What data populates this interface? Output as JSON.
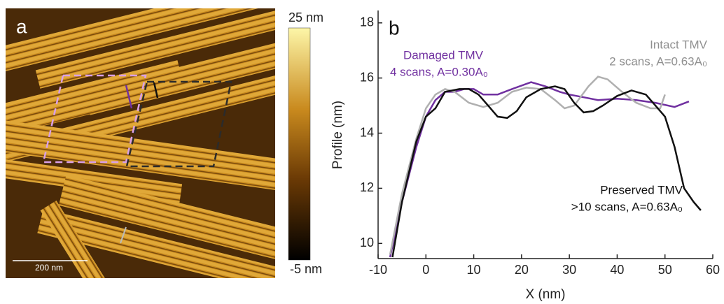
{
  "image_panel": {
    "label": "a",
    "scale_bar": "200 nm",
    "colorbar_max": "25 nm",
    "colorbar_min": "-5 nm"
  },
  "chart_data": {
    "type": "line",
    "panel_label": "b",
    "x_label": "X (nm)",
    "y_label": "Profile (nm)",
    "xlim": [
      -10,
      60
    ],
    "xticks": [
      -10,
      0,
      10,
      20,
      30,
      40,
      50,
      60
    ],
    "ylim": [
      9.45,
      18.45
    ],
    "yticks": [
      10,
      12,
      14,
      16,
      18
    ],
    "series": [
      {
        "name": "Damaged TMV",
        "color": "#7030a0",
        "x": [
          -7.5,
          -5,
          -2,
          0,
          2,
          4,
          6,
          8,
          10,
          12,
          15,
          18,
          22,
          25,
          28,
          30,
          33,
          36,
          40,
          44,
          48,
          52,
          55
        ],
        "values": [
          9.5,
          11.5,
          13.5,
          14.6,
          15.2,
          15.5,
          15.5,
          15.6,
          15.6,
          15.4,
          15.4,
          15.6,
          15.85,
          15.7,
          15.5,
          15.4,
          15.3,
          15.2,
          15.25,
          15.2,
          15.1,
          14.95,
          15.15
        ]
      },
      {
        "name": "Intact TMV",
        "color": "#b0b0b0",
        "x": [
          -7.5,
          -5,
          -2,
          0,
          2,
          4,
          6,
          9,
          12,
          15,
          18,
          21,
          24,
          27,
          29,
          31,
          34,
          36,
          38,
          41,
          44,
          47,
          49,
          50
        ],
        "values": [
          9.6,
          11.8,
          13.8,
          14.9,
          15.4,
          15.6,
          15.5,
          15.1,
          14.95,
          15.1,
          15.5,
          15.65,
          15.6,
          15.2,
          14.9,
          15.0,
          15.7,
          16.05,
          15.95,
          15.5,
          15.1,
          14.9,
          14.9,
          15.4
        ]
      },
      {
        "name": "Preserved TMV",
        "color": "#111111",
        "x": [
          -7,
          -5,
          -2,
          0,
          2,
          4,
          7,
          9,
          11,
          13,
          15,
          17,
          19,
          21,
          24,
          27,
          29,
          31,
          33,
          35,
          37,
          40,
          43,
          46,
          48,
          50,
          52,
          54,
          56,
          57.5
        ],
        "values": [
          9.5,
          11.5,
          13.7,
          14.6,
          14.9,
          15.5,
          15.6,
          15.6,
          15.4,
          15.0,
          14.6,
          14.55,
          14.8,
          15.3,
          15.6,
          15.7,
          15.6,
          15.1,
          14.75,
          14.8,
          15.0,
          15.35,
          15.55,
          15.4,
          15.0,
          14.6,
          13.5,
          12.0,
          11.5,
          11.2
        ]
      }
    ],
    "annotations": [
      {
        "text": "Damaged TMV",
        "color": "#7030a0"
      },
      {
        "text": "4 scans, A=0.30A₀",
        "color": "#7030a0"
      },
      {
        "text": "Intact TMV",
        "color": "#909090"
      },
      {
        "text": "2 scans, A=0.63A₀",
        "color": "#909090"
      },
      {
        "text": "Preserved TMV",
        "color": "#111111"
      },
      {
        "text": ">10 scans, A=0.63A₀",
        "color": "#111111"
      }
    ]
  }
}
